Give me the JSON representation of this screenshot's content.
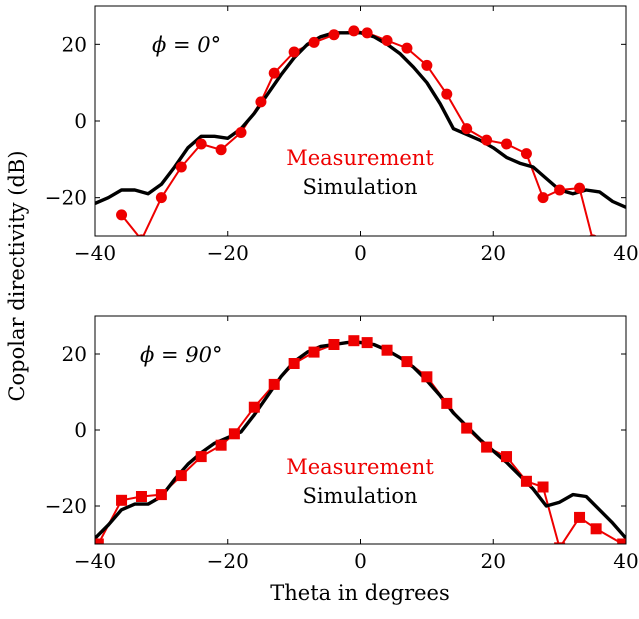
{
  "figure": {
    "ylabel": "Copolar directivity (dB)",
    "xlabel": "Theta in degrees"
  },
  "colors": {
    "measurement": "#ee0000",
    "simulation": "#000000",
    "axis": "#000000"
  },
  "chart_data": [
    {
      "type": "line",
      "annotation": "ϕ = 0°",
      "xlim": [
        -40,
        40
      ],
      "ylim": [
        -30,
        30
      ],
      "xticks": [
        -40,
        -20,
        0,
        20,
        40
      ],
      "yticks": [
        -20,
        0,
        20
      ],
      "grid": false,
      "legend_placement": "center-bottom",
      "series": [
        {
          "name": "Measurement",
          "marker": "circle",
          "x": [
            -36,
            -33,
            -30,
            -27,
            -24,
            -21,
            -18,
            -15,
            -13,
            -10,
            -7,
            -4,
            -1,
            1,
            4,
            7,
            10,
            13,
            16,
            19,
            22,
            25,
            27.5,
            30,
            33,
            35
          ],
          "y": [
            -24.5,
            -31,
            -20,
            -12,
            -6,
            -7.5,
            -3,
            5,
            12.5,
            18,
            20.5,
            22.5,
            23.5,
            23,
            21,
            19,
            14.5,
            7,
            -2,
            -5,
            -6,
            -8.5,
            -20,
            -18,
            -17.5,
            -31
          ]
        },
        {
          "name": "Simulation",
          "marker": "none",
          "x": [
            -40,
            -38,
            -36,
            -34,
            -32,
            -30,
            -28,
            -26,
            -24,
            -22,
            -20,
            -18,
            -16,
            -14,
            -12,
            -10,
            -8,
            -6,
            -4,
            -2,
            0,
            2,
            4,
            6,
            8,
            10,
            12,
            14,
            16,
            18,
            20,
            22,
            24,
            26,
            28,
            30,
            32,
            34,
            36,
            38,
            40
          ],
          "y": [
            -21.5,
            -20,
            -18,
            -18,
            -19,
            -16.5,
            -12,
            -7,
            -4,
            -4,
            -4.5,
            -2,
            2,
            7,
            12,
            16.5,
            20,
            22,
            23,
            23,
            23,
            22,
            20,
            17.5,
            14,
            10,
            4.5,
            -2,
            -3.5,
            -5,
            -7,
            -9.5,
            -11,
            -12,
            -15,
            -18,
            -19,
            -18,
            -18.5,
            -21,
            -22.5
          ]
        }
      ]
    },
    {
      "type": "line",
      "annotation": "ϕ = 90°",
      "xlim": [
        -40,
        40
      ],
      "ylim": [
        -30,
        30
      ],
      "xticks": [
        -40,
        -20,
        0,
        20,
        40
      ],
      "yticks": [
        -20,
        0,
        20
      ],
      "grid": false,
      "legend_placement": "center-bottom",
      "series": [
        {
          "name": "Measurement",
          "marker": "square",
          "x": [
            -39.5,
            -36,
            -33,
            -30,
            -27,
            -24,
            -21,
            -19,
            -16,
            -13,
            -10,
            -7,
            -4,
            -1,
            1,
            4,
            7,
            10,
            13,
            16,
            19,
            22,
            25,
            27.5,
            30,
            33,
            35.5,
            39.5
          ],
          "y": [
            -30,
            -18.5,
            -17.5,
            -17,
            -12,
            -7,
            -4,
            -1,
            6,
            12,
            17.5,
            20.5,
            22.5,
            23.5,
            23,
            21,
            18,
            14,
            7,
            0.5,
            -4.5,
            -7,
            -13.5,
            -15,
            -31,
            -23,
            -26,
            -30
          ]
        },
        {
          "name": "Simulation",
          "marker": "none",
          "x": [
            -40,
            -38,
            -36,
            -34,
            -32,
            -30,
            -28,
            -26,
            -24,
            -22,
            -20,
            -18,
            -16,
            -14,
            -12,
            -10,
            -8,
            -6,
            -4,
            -2,
            0,
            2,
            4,
            6,
            8,
            10,
            12,
            14,
            16,
            18,
            20,
            22,
            24,
            26,
            28,
            30,
            32,
            34,
            36,
            38,
            40
          ],
          "y": [
            -28.5,
            -25,
            -21,
            -19.5,
            -19.5,
            -17.5,
            -13,
            -9,
            -6,
            -3.5,
            -2,
            -0.5,
            4,
            9,
            14,
            18,
            20.5,
            22,
            22.5,
            23,
            23,
            22.5,
            21,
            19,
            16.5,
            13,
            9,
            4.5,
            1,
            -2.5,
            -5.5,
            -8.5,
            -12,
            -15.5,
            -20,
            -19,
            -17,
            -17.5,
            -21,
            -24.5,
            -28.5
          ]
        }
      ]
    }
  ]
}
